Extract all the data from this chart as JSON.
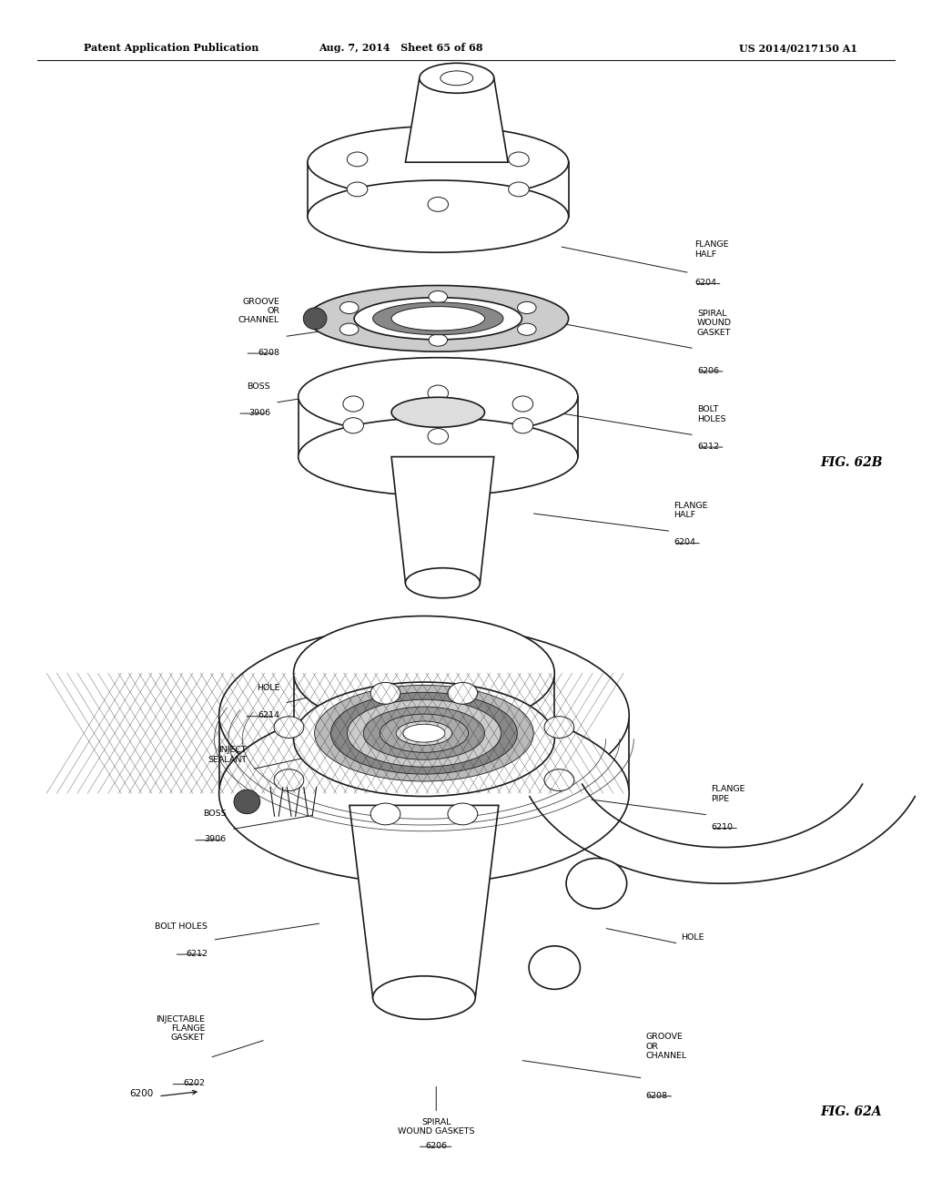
{
  "bg_color": "#ffffff",
  "header_left": "Patent Application Publication",
  "header_center": "Aug. 7, 2014   Sheet 65 of 68",
  "header_right": "US 2014/0217150 A1",
  "fig_label_b": "FIG. 62B",
  "fig_label_a": "FIG. 62A",
  "page_width": 10.24,
  "page_height": 13.2
}
